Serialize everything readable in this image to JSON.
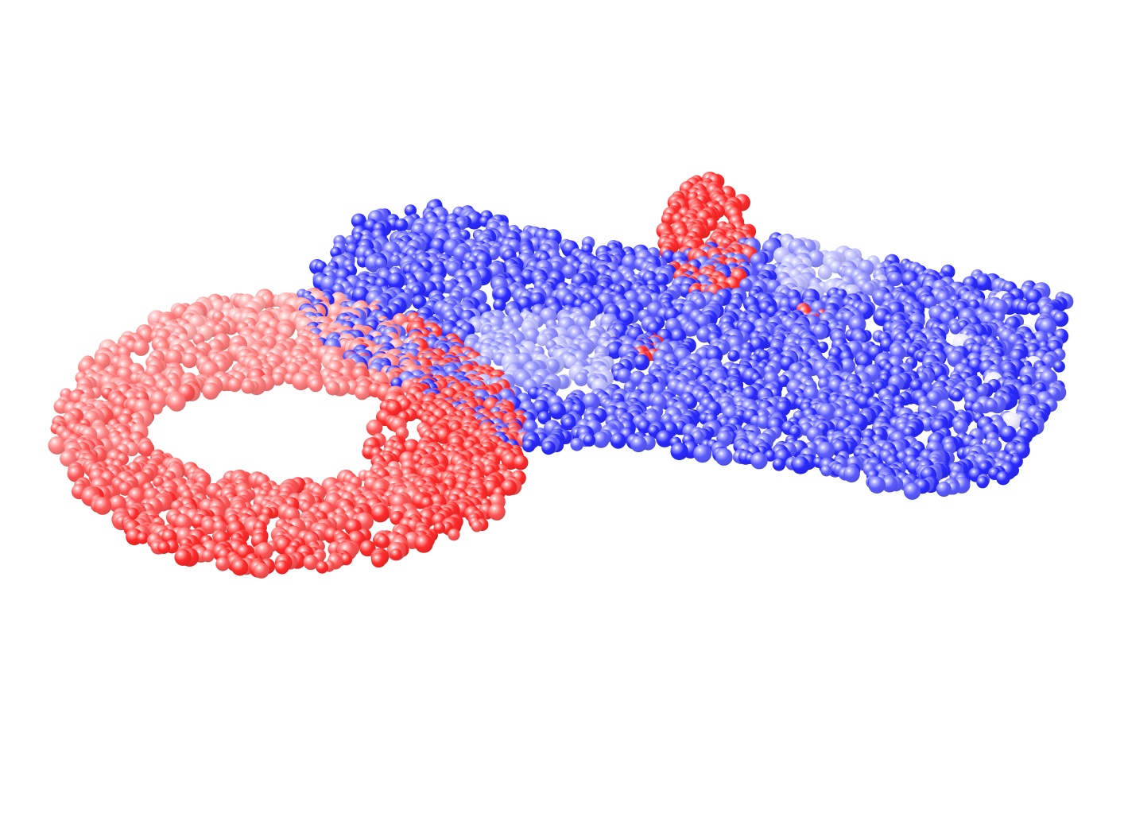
{
  "scene": {
    "background": "#ffffff",
    "style": "space-filling spheres",
    "color_scheme": "red-white-blue",
    "palette": {
      "red": "#ff2a2a",
      "white": "#ffffff",
      "blue": "#2a2aff"
    },
    "regions": [
      {
        "name": "left-domain",
        "color": "red",
        "description_shape": "curved crescent"
      },
      {
        "name": "central-linker",
        "color": "mixed"
      },
      {
        "name": "right-domain",
        "color": "blue",
        "description_shape": "elongated band"
      }
    ]
  }
}
